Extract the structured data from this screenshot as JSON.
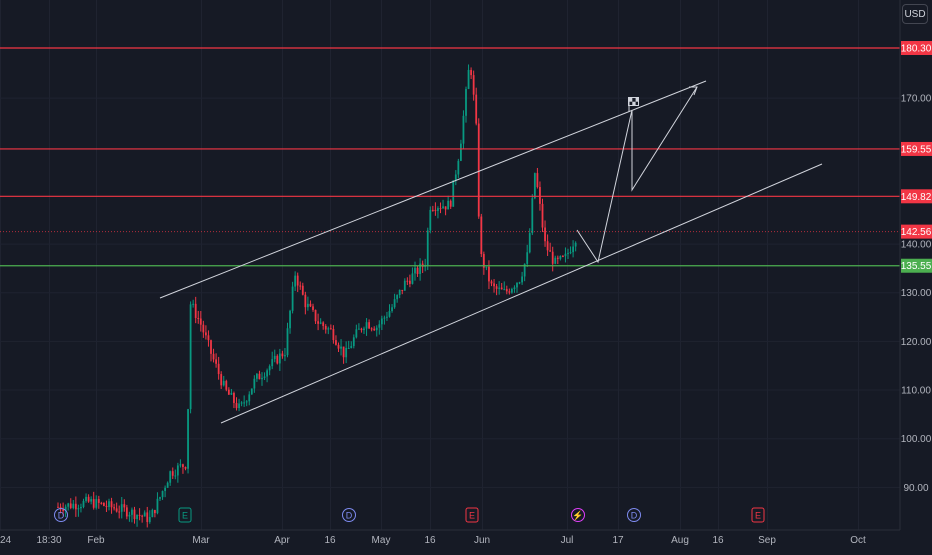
{
  "currency_button": "USD",
  "chart_data": {
    "type": "candlestick",
    "y_axis": {
      "min": 82,
      "max": 191,
      "ticks": [
        90,
        100,
        110,
        120,
        130,
        140,
        170
      ]
    },
    "x_axis": {
      "labels": [
        "24",
        "18:30",
        "Feb",
        "Mar",
        "Apr",
        "16",
        "May",
        "16",
        "Jun",
        "Jul",
        "17",
        "Aug",
        "16",
        "Sep",
        "Oct"
      ]
    },
    "last_price": {
      "value": 142.56,
      "label": "142.56",
      "color": "#f23645"
    },
    "horizontal_levels": [
      {
        "value": 180.3,
        "label": "180.30",
        "color": "#f23645"
      },
      {
        "value": 159.55,
        "label": "159.55",
        "color": "#f23645"
      },
      {
        "value": 149.82,
        "label": "149.82",
        "color": "#f23645"
      },
      {
        "value": 135.55,
        "label": "135.55",
        "color": "#4caf50"
      }
    ],
    "event_markers": [
      {
        "label": "D",
        "kind": "dividend"
      },
      {
        "label": "E",
        "kind": "earnings"
      },
      {
        "label": "D",
        "kind": "dividend"
      },
      {
        "label": "E",
        "kind": "earnings"
      },
      {
        "label": "⚡",
        "kind": "split"
      },
      {
        "label": "D",
        "kind": "dividend"
      },
      {
        "label": "E",
        "kind": "earnings"
      }
    ],
    "up_color": "#089981",
    "down_color": "#f23645",
    "line_color": "#d1d4dc",
    "grid": true
  }
}
